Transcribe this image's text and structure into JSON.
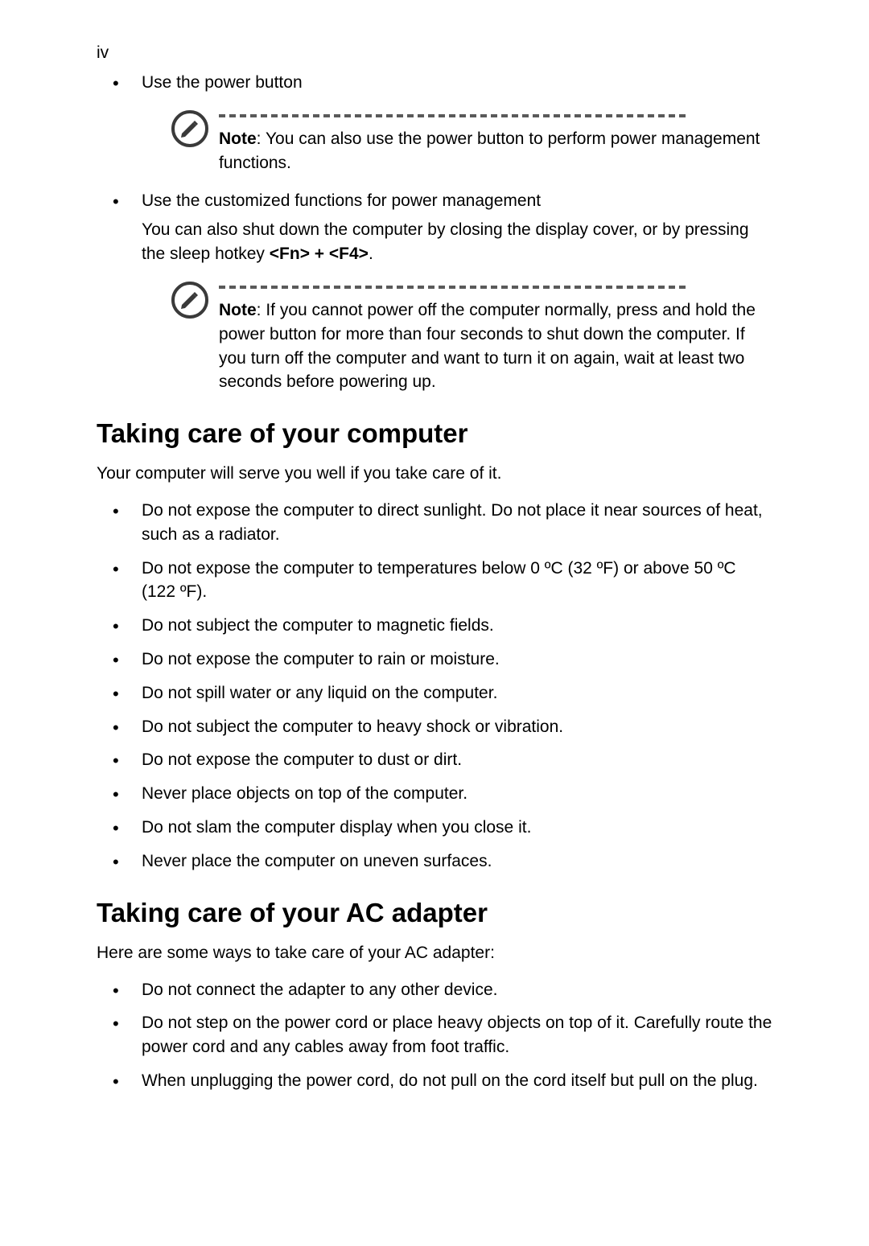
{
  "page_number": "iv",
  "bullet1": {
    "text": "Use the power button"
  },
  "note1": {
    "label": "Note",
    "text": ": You can also use the power button to perform power management functions."
  },
  "bullet2": {
    "text": "Use the customized functions for power management",
    "sub_before": "You can also shut down the computer by closing the display cover, or by pressing the sleep hotkey ",
    "hotkey": "<Fn> + <F4>",
    "sub_after": "."
  },
  "note2": {
    "label": "Note",
    "text": ": If you cannot power off the computer normally, press and hold the power button for more than four seconds to shut down the computer. If you turn off the computer and want to turn it on again, wait at least two seconds before powering up."
  },
  "section1": {
    "title": "Taking care of your computer",
    "intro": "Your computer will serve you well if you take care of it.",
    "items": [
      "Do not expose the computer to direct sunlight. Do not place it near sources of heat, such as a radiator.",
      "Do not expose the computer to temperatures below 0 ºC (32 ºF) or above 50 ºC (122 ºF).",
      "Do not subject the computer to magnetic fields.",
      "Do not expose the computer to rain or moisture.",
      "Do not spill water or any liquid on the computer.",
      "Do not subject the computer to heavy shock or vibration.",
      "Do not expose the computer to dust or dirt.",
      "Never place objects on top of the computer.",
      "Do not slam the computer display when you close it.",
      "Never place the computer on uneven surfaces."
    ]
  },
  "section2": {
    "title": "Taking care of your AC adapter",
    "intro": "Here are some ways to take care of your AC adapter:",
    "items": [
      "Do not connect the adapter to any other device.",
      "Do not step on the power cord or place heavy objects on top of it. Carefully route the power cord and any cables away from foot traffic.",
      "When unplugging the power cord, do not pull on the cord itself but pull on the plug."
    ]
  },
  "style": {
    "background": "#ffffff",
    "text_color": "#000000",
    "divider_color": "#5a5a5a",
    "body_fontsize": 21,
    "heading_fontsize": 33,
    "icon_stroke": "#3a3a3a"
  }
}
